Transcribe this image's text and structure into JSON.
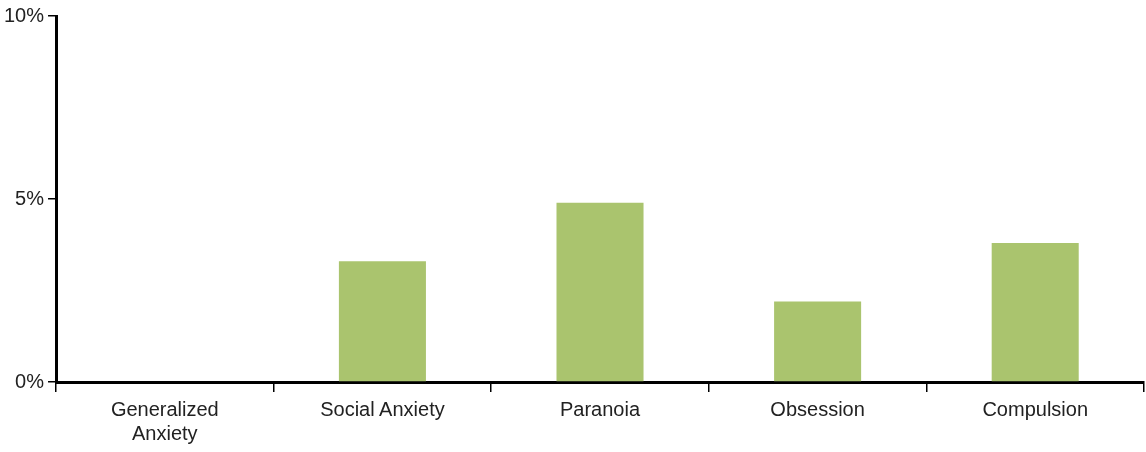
{
  "chart_data": {
    "type": "bar",
    "categories": [
      "Generalized Anxiety",
      "Social Anxiety",
      "Paranoia",
      "Obsession",
      "Compulsion"
    ],
    "values": [
      0,
      3.3,
      4.9,
      2.2,
      3.8
    ],
    "color": "#aac46e",
    "ylim": [
      0,
      10
    ],
    "yticks": [
      {
        "value": 0,
        "label": "0%"
      },
      {
        "value": 5,
        "label": "5%"
      },
      {
        "value": 10,
        "label": "10%"
      }
    ],
    "grid": false,
    "legend": false
  }
}
